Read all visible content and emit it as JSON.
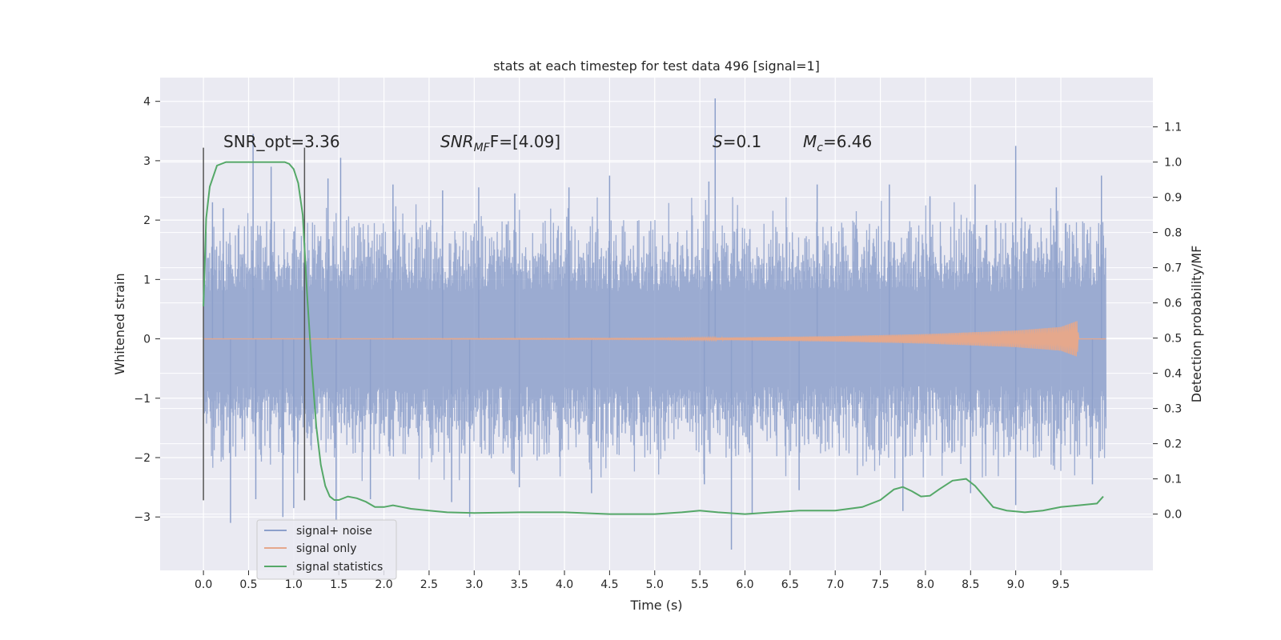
{
  "chart_data": {
    "type": "line",
    "title": "stats at each timestep for test data 496 [signal=1]",
    "xlabel": "Time (s)",
    "ylabel": "Whitened strain",
    "y2label": "Detection probability/MF",
    "xlim": [
      -0.48,
      10.52
    ],
    "ylim": [
      -3.9,
      4.4
    ],
    "y2lim": [
      -0.16,
      1.24
    ],
    "grid": true,
    "legend_position": "lower-left",
    "x_ticks": [
      "0.0",
      "0.5",
      "1.0",
      "1.5",
      "2.0",
      "2.5",
      "3.0",
      "3.5",
      "4.0",
      "4.5",
      "5.0",
      "5.5",
      "6.0",
      "6.5",
      "7.0",
      "7.5",
      "8.0",
      "8.5",
      "9.0",
      "9.5"
    ],
    "y_ticks": [
      {
        "v": 4,
        "label": "4"
      },
      {
        "v": 3,
        "label": "3"
      },
      {
        "v": 2,
        "label": "2"
      },
      {
        "v": 1,
        "label": "1"
      },
      {
        "v": 0,
        "label": "0"
      },
      {
        "v": -1,
        "label": "−1"
      },
      {
        "v": -2,
        "label": "−2"
      },
      {
        "v": -3,
        "label": "−3"
      }
    ],
    "y2_ticks": [
      "1.1",
      "1.0",
      "0.9",
      "0.8",
      "0.7",
      "0.6",
      "0.5",
      "0.4",
      "0.3",
      "0.2",
      "0.1",
      "0.0"
    ],
    "annotations": {
      "snr_opt": "SNR_opt=3.36",
      "snr_mf_label": "SNR",
      "snr_mf_sub": "MF",
      "snr_mf_tail": "F=[4.09]",
      "s_label": "S",
      "s_value": "=0.1",
      "mc_label": "M",
      "mc_sub": "c",
      "mc_value": "=6.46"
    },
    "vertical_markers": [
      0.0,
      1.12
    ],
    "series": [
      {
        "name": "signal+ noise",
        "color": "#8da0cb",
        "envelope_core": [
          -1.45,
          1.45
        ],
        "typical_extent": [
          -2.0,
          2.0
        ],
        "x_range": [
          0.0,
          10.0
        ],
        "peaks": [
          {
            "x": 0.1,
            "y": 2.3
          },
          {
            "x": 0.22,
            "y": 2.2
          },
          {
            "x": 0.55,
            "y": 3.45
          },
          {
            "x": 0.75,
            "y": 2.9
          },
          {
            "x": 1.52,
            "y": 3.05
          },
          {
            "x": 1.38,
            "y": 2.7
          },
          {
            "x": 2.1,
            "y": 2.6
          },
          {
            "x": 2.65,
            "y": 2.5
          },
          {
            "x": 3.05,
            "y": 2.55
          },
          {
            "x": 3.45,
            "y": 2.45
          },
          {
            "x": 4.05,
            "y": 2.55
          },
          {
            "x": 4.5,
            "y": 2.75
          },
          {
            "x": 5.6,
            "y": 2.65
          },
          {
            "x": 5.67,
            "y": 4.05
          },
          {
            "x": 6.8,
            "y": 2.6
          },
          {
            "x": 7.6,
            "y": 2.6
          },
          {
            "x": 8.05,
            "y": 2.4
          },
          {
            "x": 8.55,
            "y": 2.6
          },
          {
            "x": 9.0,
            "y": 3.25
          },
          {
            "x": 9.45,
            "y": 2.55
          },
          {
            "x": 9.95,
            "y": 2.75
          }
        ],
        "troughs": [
          {
            "x": 0.3,
            "y": -3.1
          },
          {
            "x": 0.58,
            "y": -2.7
          },
          {
            "x": 0.88,
            "y": -3.0
          },
          {
            "x": 1.0,
            "y": -2.85
          },
          {
            "x": 1.47,
            "y": -3.05
          },
          {
            "x": 1.85,
            "y": -2.7
          },
          {
            "x": 2.75,
            "y": -2.75
          },
          {
            "x": 2.95,
            "y": -3.0
          },
          {
            "x": 3.5,
            "y": -2.5
          },
          {
            "x": 4.3,
            "y": -2.6
          },
          {
            "x": 5.55,
            "y": -2.45
          },
          {
            "x": 5.85,
            "y": -3.55
          },
          {
            "x": 6.08,
            "y": -2.95
          },
          {
            "x": 6.6,
            "y": -2.55
          },
          {
            "x": 7.75,
            "y": -2.9
          },
          {
            "x": 8.5,
            "y": -2.6
          },
          {
            "x": 9.0,
            "y": -2.8
          },
          {
            "x": 9.85,
            "y": -2.45
          }
        ]
      },
      {
        "name": "signal only",
        "color": "#e5a88c",
        "amplitude_profile": [
          {
            "x": 0.0,
            "a": 0.0
          },
          {
            "x": 5.0,
            "a": 0.01
          },
          {
            "x": 6.0,
            "a": 0.025
          },
          {
            "x": 7.0,
            "a": 0.045
          },
          {
            "x": 8.0,
            "a": 0.08
          },
          {
            "x": 9.0,
            "a": 0.14
          },
          {
            "x": 9.5,
            "a": 0.2
          },
          {
            "x": 9.68,
            "a": 0.3
          },
          {
            "x": 9.7,
            "a": 0.0
          },
          {
            "x": 10.0,
            "a": 0.0
          }
        ]
      },
      {
        "name": "signal statistics",
        "color": "#55a868",
        "axis": "right",
        "x": [
          0.0,
          0.03,
          0.07,
          0.15,
          0.25,
          0.4,
          0.6,
          0.8,
          0.9,
          0.95,
          1.0,
          1.05,
          1.1,
          1.15,
          1.2,
          1.25,
          1.3,
          1.35,
          1.4,
          1.45,
          1.5,
          1.6,
          1.7,
          1.8,
          1.9,
          2.0,
          2.1,
          2.2,
          2.3,
          2.5,
          2.7,
          3.0,
          3.5,
          4.0,
          4.5,
          5.0,
          5.3,
          5.5,
          5.7,
          6.0,
          6.3,
          6.6,
          7.0,
          7.3,
          7.5,
          7.65,
          7.75,
          7.85,
          7.95,
          8.05,
          8.15,
          8.3,
          8.45,
          8.55,
          8.65,
          8.75,
          8.9,
          9.1,
          9.3,
          9.5,
          9.7,
          9.9,
          9.97
        ],
        "y": [
          0.59,
          0.84,
          0.93,
          0.99,
          1.0,
          1.0,
          1.0,
          1.0,
          1.0,
          0.995,
          0.98,
          0.94,
          0.85,
          0.62,
          0.42,
          0.25,
          0.14,
          0.08,
          0.05,
          0.04,
          0.04,
          0.05,
          0.045,
          0.035,
          0.02,
          0.02,
          0.025,
          0.02,
          0.015,
          0.01,
          0.005,
          0.003,
          0.005,
          0.005,
          0.0,
          0.0,
          0.005,
          0.01,
          0.005,
          0.0,
          0.005,
          0.01,
          0.01,
          0.02,
          0.04,
          0.07,
          0.077,
          0.065,
          0.05,
          0.052,
          0.07,
          0.095,
          0.1,
          0.08,
          0.05,
          0.02,
          0.01,
          0.005,
          0.01,
          0.02,
          0.025,
          0.03,
          0.05
        ]
      }
    ]
  }
}
